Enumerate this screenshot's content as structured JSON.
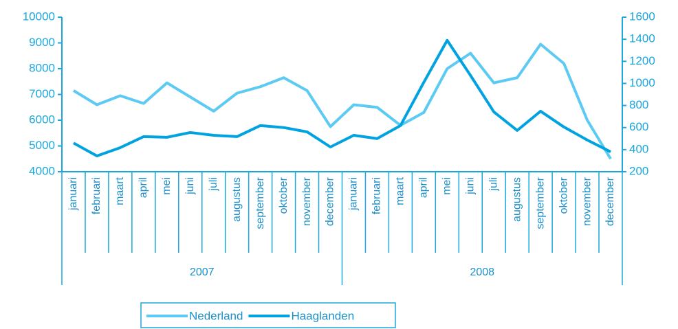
{
  "chart_data": {
    "type": "line",
    "categories": [
      "januari",
      "februari",
      "maart",
      "april",
      "mei",
      "juni",
      "juli",
      "augustus",
      "september",
      "oktober",
      "november",
      "december",
      "januari",
      "februari",
      "maart",
      "april",
      "mei",
      "juni",
      "juli",
      "augustus",
      "september",
      "oktober",
      "november",
      "december"
    ],
    "groups": [
      "2007",
      "2008"
    ],
    "series": [
      {
        "name": "Nederland",
        "color": "#5ccaf2",
        "axis": "y",
        "values": [
          7150,
          6600,
          6950,
          6650,
          7450,
          6900,
          6350,
          7050,
          7300,
          7650,
          7150,
          5750,
          6600,
          6500,
          5800,
          6300,
          8000,
          8600,
          7450,
          7650,
          8950,
          8200,
          6000,
          4500
        ]
      },
      {
        "name": "Haaglanden",
        "color": "#00a3df",
        "axis": "y2",
        "values": [
          460,
          343,
          418,
          518,
          512,
          555,
          530,
          518,
          618,
          600,
          561,
          424,
          530,
          500,
          618,
          1010,
          1390,
          1072,
          742,
          574,
          748,
          605,
          487,
          380
        ]
      }
    ],
    "ylim": [
      4000,
      10000
    ],
    "yticks": [
      4000,
      5000,
      6000,
      7000,
      8000,
      9000,
      10000
    ],
    "y2lim": [
      200,
      1600
    ],
    "y2ticks": [
      200,
      400,
      600,
      800,
      1000,
      1200,
      1400,
      1600
    ],
    "legend": "bottom"
  }
}
